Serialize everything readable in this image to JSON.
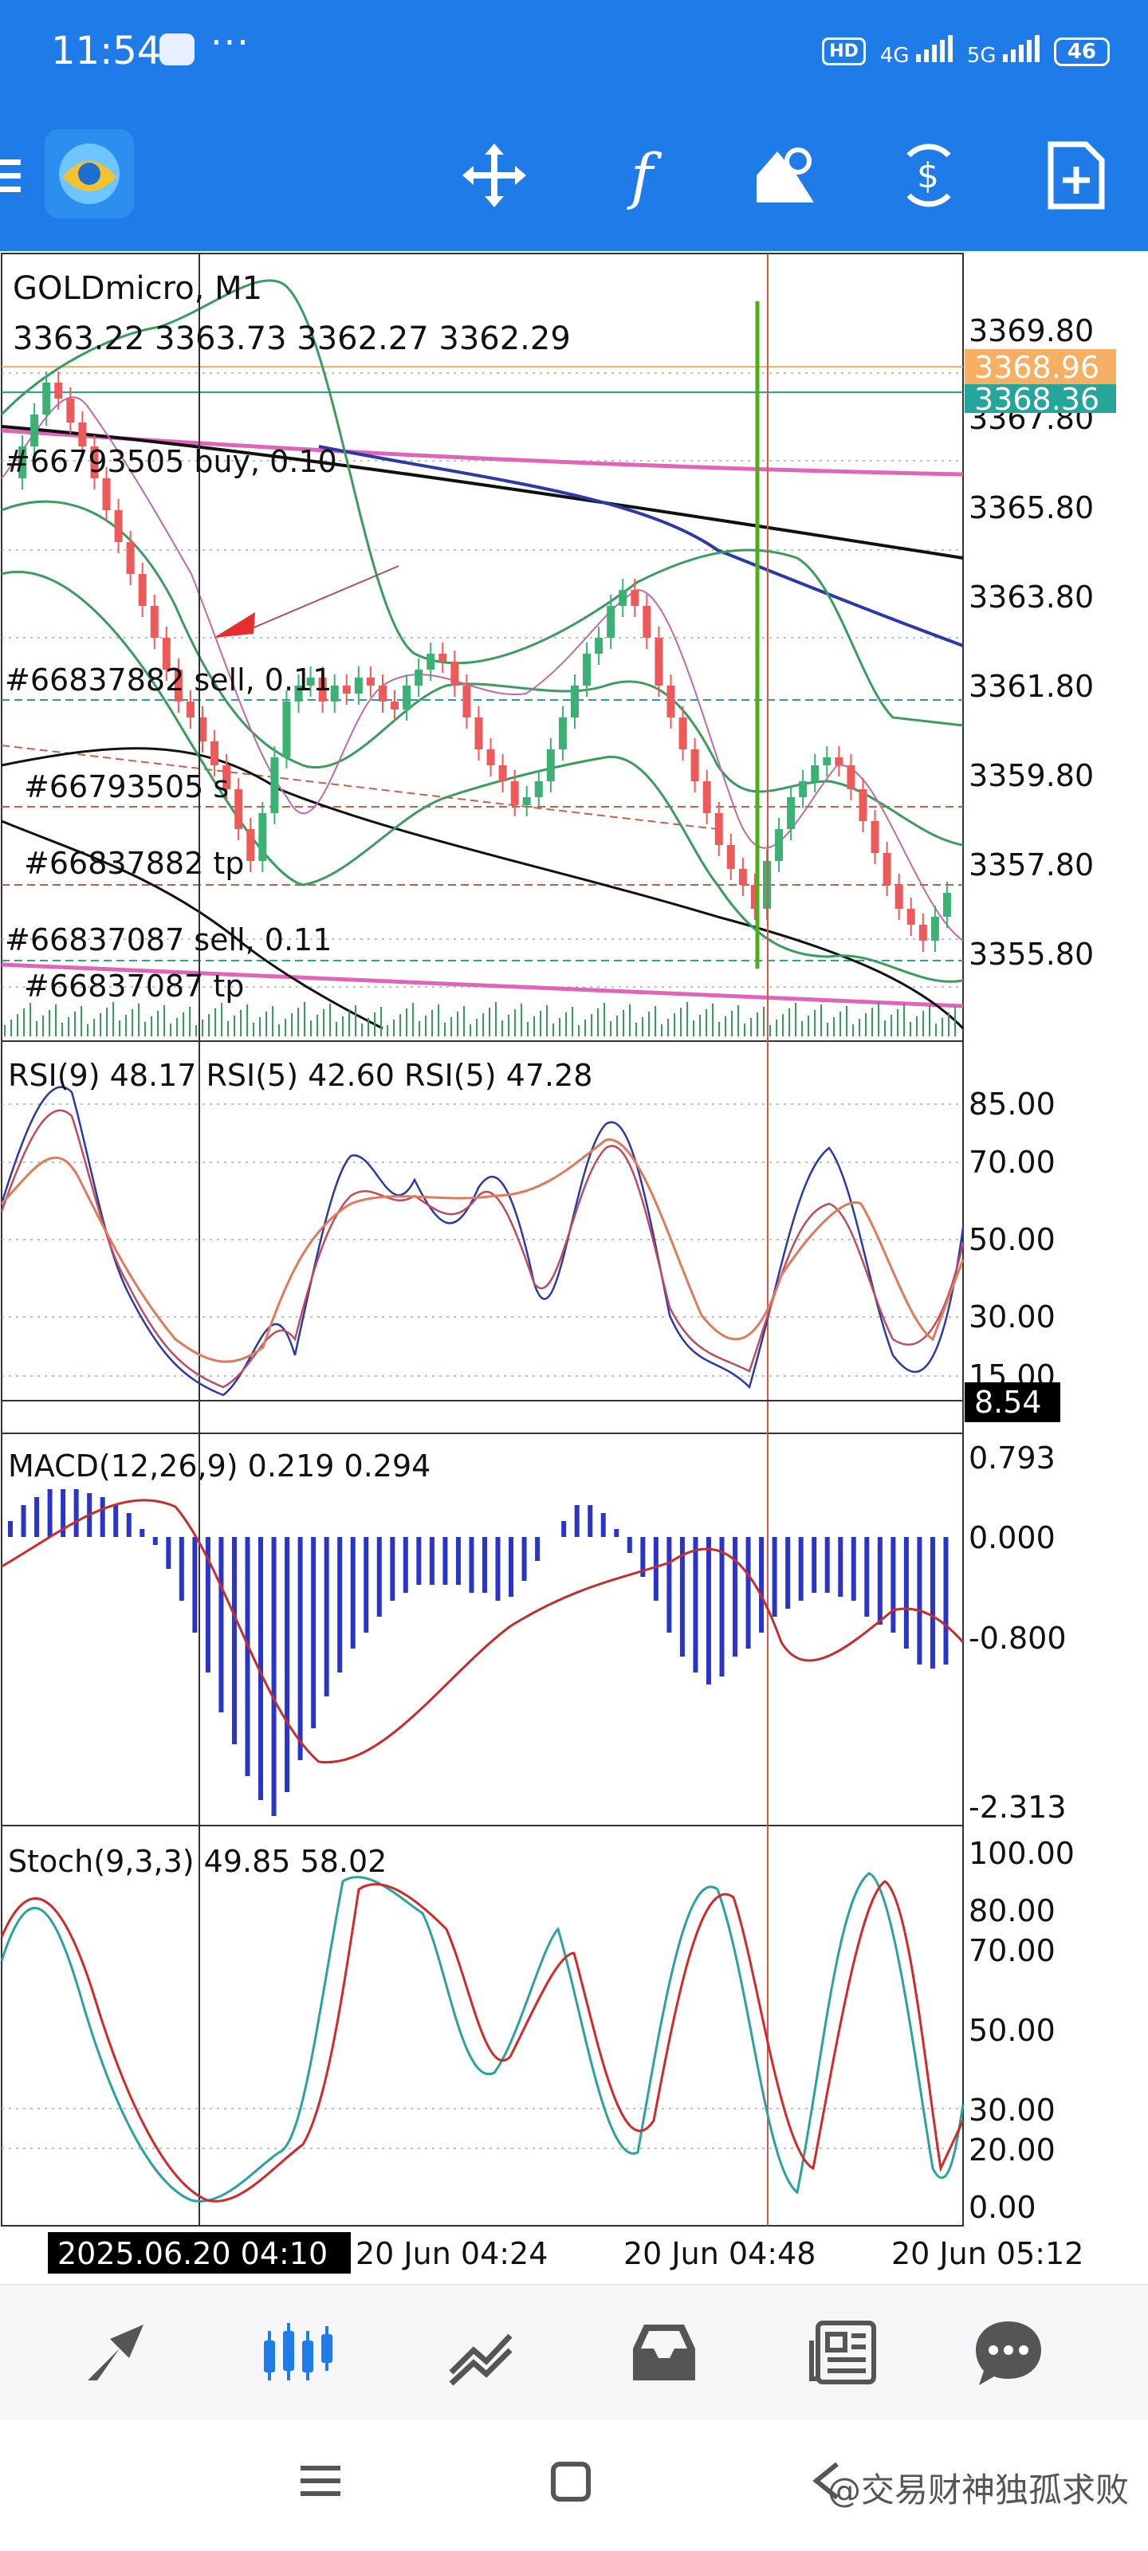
{
  "status_bar": {
    "time": "11:54",
    "more": "···",
    "network": [
      "HD",
      "4G",
      "5G"
    ],
    "battery": "46"
  },
  "toolbar": {
    "icons": [
      "menu-icon",
      "metatrader-logo",
      "crosshair-icon",
      "indicators-icon",
      "objects-icon",
      "symbols-icon",
      "new-order-icon"
    ],
    "indicators_label": "f"
  },
  "chart": {
    "symbol": "GOLDmicro, M1",
    "ohlc": "3363.22 3363.73 3362.27 3362.29",
    "price_ticks": [
      "3369.80",
      "3367.80",
      "3365.80",
      "3363.80",
      "3361.80",
      "3359.80",
      "3357.80",
      "3355.80"
    ],
    "ask_label": "3368.96",
    "bid_label": "3368.36",
    "orders": [
      "#66793505 buy, 0.10",
      "#66837882 sell, 0.11",
      "#66793505 s",
      "#66837882 tp",
      "#66837087 sell, 0.11",
      "#66837087 tp"
    ],
    "colors": {
      "ask": "#f7b063",
      "bid": "#26a69a",
      "up": "#3bb273",
      "down": "#ee5a5a"
    }
  },
  "rsi": {
    "header": "RSI(9) 48.17 RSI(5) 42.60 RSI(5) 47.28",
    "ticks": [
      "85.00",
      "70.00",
      "50.00",
      "30.00",
      "15.00"
    ],
    "current": "8.54"
  },
  "macd": {
    "header": "MACD(12,26,9) 0.219 0.294",
    "ticks": [
      "0.793",
      "0.000",
      "-0.800",
      "-2.313"
    ]
  },
  "stoch": {
    "header": "Stoch(9,3,3) 49.85 58.02",
    "ticks": [
      "100.00",
      "80.00",
      "70.00",
      "50.00",
      "30.00",
      "20.00",
      "0.00"
    ]
  },
  "time_axis": {
    "cursor_label": "2025.06.20 04:10",
    "labels": [
      "20 Jun 04:24",
      "20 Jun 04:48",
      "20 Jun 05:12"
    ]
  },
  "bottom_nav": [
    "quotes-icon",
    "chart-icon",
    "trade-icon",
    "history-icon",
    "news-icon",
    "chat-icon"
  ],
  "watermark": "@交易财神独孤求败"
}
